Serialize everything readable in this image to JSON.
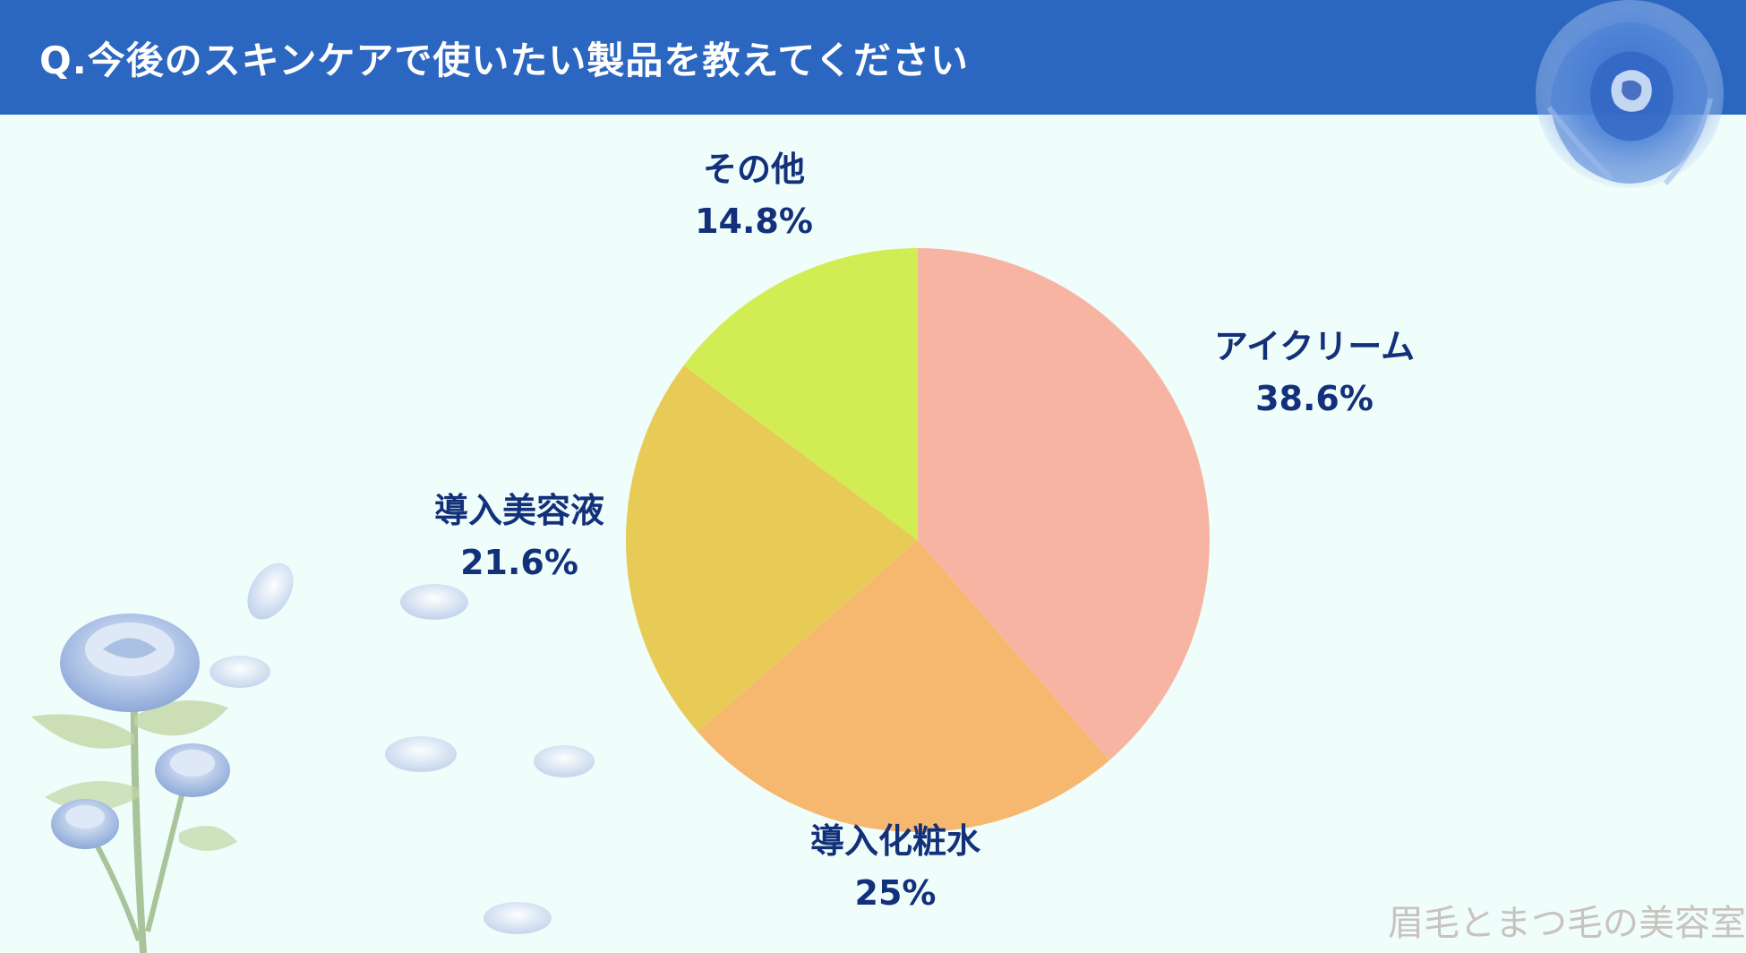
{
  "header": {
    "title": "Q.今後のスキンケアで使いたい製品を教えてください"
  },
  "watermark": "眉毛とまつ毛の美容室",
  "colors": {
    "header_bg": "#2b66c0",
    "background": "#effdfb",
    "label_text": "#13307a"
  },
  "chart_data": {
    "type": "pie",
    "title": "Q.今後のスキンケアで使いたい製品を教えてください",
    "start": "top",
    "direction": "clockwise",
    "slices": [
      {
        "label": "アイクリーム",
        "value": 38.6,
        "value_label": "38.6%",
        "color": "#f8b4a3"
      },
      {
        "label": "導入化粧水",
        "value": 25,
        "value_label": "25%",
        "color": "#f6b86e"
      },
      {
        "label": "導入美容液",
        "value": 21.6,
        "value_label": "21.6%",
        "color": "#e7cb56"
      },
      {
        "label": "その他",
        "value": 14.8,
        "value_label": "14.8%",
        "color": "#d2ed53"
      }
    ]
  }
}
